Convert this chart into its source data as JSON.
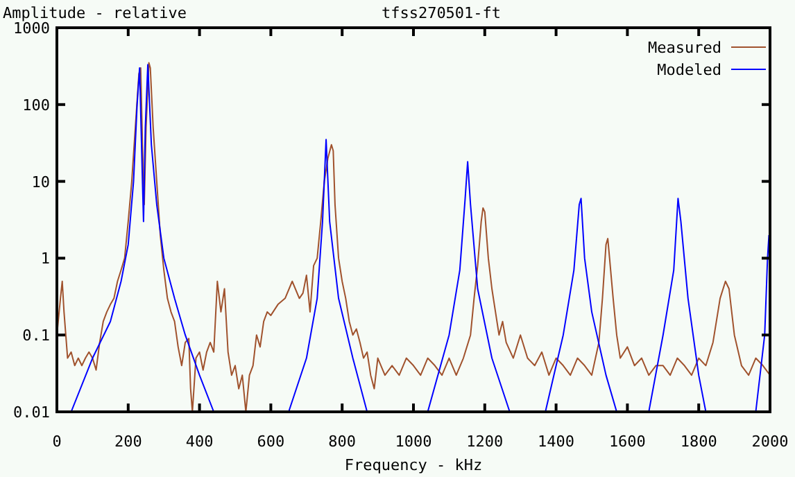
{
  "chart_data": {
    "type": "line",
    "title": "tfss270501-ft",
    "ylabel": "Amplitude - relative",
    "xlabel": "Frequency - kHz",
    "log": "y",
    "xlim": [
      0,
      2000
    ],
    "xticks": [
      0,
      200,
      400,
      600,
      800,
      1000,
      1200,
      1400,
      1600,
      1800,
      2000
    ],
    "ylim": [
      0.01,
      1000
    ],
    "yticks": [
      0.01,
      0.1,
      1,
      10,
      100,
      1000
    ],
    "legend": "top right",
    "series": [
      {
        "name": "Measured",
        "color": "#a0522d",
        "x": [
          0,
          10,
          15,
          20,
          30,
          40,
          50,
          60,
          70,
          80,
          90,
          100,
          110,
          120,
          130,
          140,
          150,
          160,
          170,
          180,
          190,
          200,
          210,
          220,
          230,
          235,
          240,
          245,
          250,
          258,
          262,
          270,
          280,
          290,
          300,
          310,
          320,
          330,
          340,
          350,
          360,
          370,
          375,
          380,
          390,
          400,
          410,
          420,
          430,
          440,
          450,
          460,
          470,
          480,
          490,
          500,
          510,
          520,
          530,
          540,
          550,
          560,
          570,
          580,
          590,
          600,
          620,
          640,
          660,
          680,
          690,
          700,
          710,
          720,
          730,
          740,
          750,
          760,
          770,
          775,
          780,
          790,
          800,
          810,
          820,
          830,
          840,
          850,
          860,
          870,
          880,
          890,
          900,
          920,
          940,
          960,
          980,
          1000,
          1020,
          1040,
          1060,
          1080,
          1100,
          1120,
          1140,
          1160,
          1170,
          1180,
          1190,
          1195,
          1200,
          1210,
          1220,
          1230,
          1240,
          1250,
          1260,
          1280,
          1300,
          1320,
          1340,
          1360,
          1380,
          1400,
          1420,
          1440,
          1460,
          1480,
          1500,
          1520,
          1530,
          1540,
          1545,
          1550,
          1560,
          1570,
          1580,
          1600,
          1620,
          1640,
          1660,
          1680,
          1700,
          1720,
          1740,
          1760,
          1780,
          1800,
          1820,
          1840,
          1860,
          1875,
          1885,
          1900,
          1920,
          1940,
          1960,
          1980,
          2000
        ],
        "values": [
          0.1,
          0.3,
          0.5,
          0.2,
          0.05,
          0.06,
          0.04,
          0.05,
          0.04,
          0.05,
          0.06,
          0.05,
          0.035,
          0.08,
          0.15,
          0.2,
          0.25,
          0.3,
          0.5,
          0.7,
          1,
          3,
          10,
          50,
          250,
          300,
          30,
          5,
          50,
          350,
          300,
          50,
          10,
          2,
          0.7,
          0.3,
          0.2,
          0.15,
          0.07,
          0.04,
          0.08,
          0.09,
          0.02,
          0.01,
          0.05,
          0.06,
          0.035,
          0.06,
          0.08,
          0.06,
          0.5,
          0.2,
          0.4,
          0.06,
          0.03,
          0.04,
          0.02,
          0.03,
          0.01,
          0.03,
          0.04,
          0.1,
          0.07,
          0.15,
          0.2,
          0.18,
          0.25,
          0.3,
          0.5,
          0.3,
          0.35,
          0.6,
          0.2,
          0.8,
          1,
          3,
          10,
          20,
          30,
          25,
          5,
          1,
          0.5,
          0.3,
          0.15,
          0.1,
          0.12,
          0.08,
          0.05,
          0.06,
          0.03,
          0.02,
          0.05,
          0.03,
          0.04,
          0.03,
          0.05,
          0.04,
          0.03,
          0.05,
          0.04,
          0.03,
          0.05,
          0.03,
          0.05,
          0.1,
          0.3,
          0.8,
          3,
          4.5,
          4,
          1,
          0.4,
          0.2,
          0.1,
          0.15,
          0.08,
          0.05,
          0.1,
          0.05,
          0.04,
          0.06,
          0.03,
          0.05,
          0.04,
          0.03,
          0.05,
          0.04,
          0.03,
          0.08,
          0.3,
          1.5,
          1.8,
          1,
          0.3,
          0.1,
          0.05,
          0.07,
          0.04,
          0.05,
          0.03,
          0.04,
          0.04,
          0.03,
          0.05,
          0.04,
          0.03,
          0.05,
          0.04,
          0.08,
          0.3,
          0.5,
          0.4,
          0.1,
          0.04,
          0.03,
          0.05,
          0.04,
          0.03
        ]
      },
      {
        "name": "Modeled",
        "color": "#0000ff",
        "x": [
          40,
          100,
          150,
          180,
          200,
          215,
          225,
          232,
          240,
          243,
          248,
          255,
          265,
          280,
          300,
          330,
          360,
          400,
          440,
          540,
          650,
          700,
          730,
          745,
          755,
          765,
          790,
          830,
          870,
          950,
          1040,
          1100,
          1130,
          1145,
          1152,
          1160,
          1180,
          1220,
          1270,
          1320,
          1370,
          1420,
          1450,
          1465,
          1470,
          1480,
          1500,
          1540,
          1570,
          1610,
          1660,
          1700,
          1730,
          1742,
          1750,
          1770,
          1800,
          1820,
          1900,
          1960,
          1985,
          1993,
          1997
        ],
        "values": [
          0.01,
          0.05,
          0.15,
          0.5,
          1.5,
          10,
          100,
          300,
          10,
          3,
          50,
          330,
          30,
          5,
          1,
          0.3,
          0.1,
          0.03,
          0.01,
          null,
          0.01,
          0.05,
          0.3,
          3,
          35,
          3,
          0.3,
          0.05,
          0.01,
          null,
          0.01,
          0.1,
          0.7,
          6,
          18,
          5,
          0.4,
          0.05,
          0.01,
          null,
          0.01,
          0.1,
          0.7,
          5,
          6,
          1,
          0.2,
          0.03,
          0.01,
          null,
          0.01,
          0.1,
          0.7,
          6,
          3,
          0.3,
          0.03,
          0.01,
          null,
          0.01,
          0.1,
          1,
          2
        ]
      }
    ]
  }
}
